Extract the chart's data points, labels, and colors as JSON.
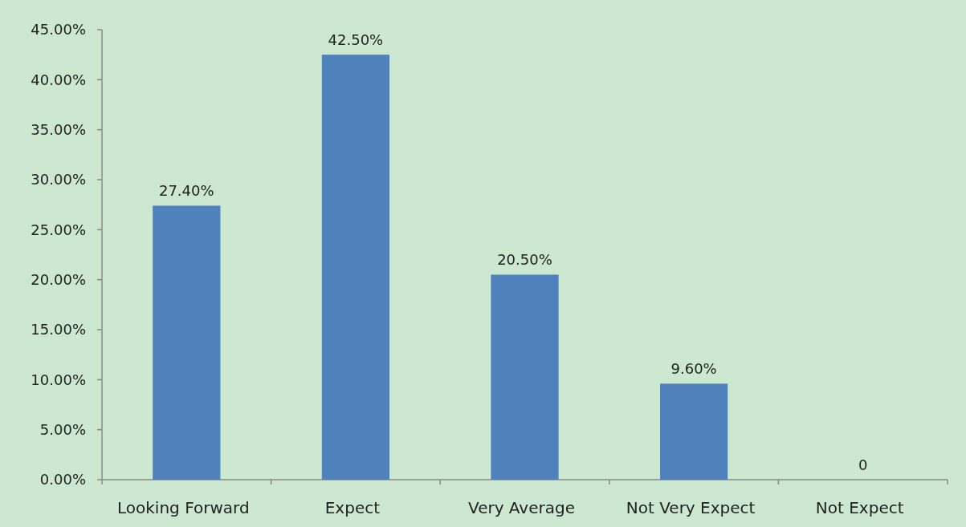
{
  "chart_data": {
    "type": "bar",
    "categories": [
      "Looking Forward",
      "Expect",
      "Very Average",
      "Not Very Expect",
      "Not Expect"
    ],
    "values": [
      27.4,
      42.5,
      20.5,
      9.6,
      0
    ],
    "value_labels": [
      "27.40%",
      "42.50%",
      "20.50%",
      "9.60%",
      "0"
    ],
    "color": "#4f81bd",
    "ylim": [
      0,
      45
    ],
    "yticks": [
      {
        "value": 0,
        "label": "0.00%"
      },
      {
        "value": 5,
        "label": "5.00%"
      },
      {
        "value": 10,
        "label": "10.00%"
      },
      {
        "value": 15,
        "label": "15.00%"
      },
      {
        "value": 20,
        "label": "20.00%"
      },
      {
        "value": 25,
        "label": "25.00%"
      },
      {
        "value": 30,
        "label": "30.00%"
      },
      {
        "value": 35,
        "label": "35.00%"
      },
      {
        "value": 40,
        "label": "40.00%"
      },
      {
        "value": 45,
        "label": "45.00%"
      }
    ],
    "grid": false
  }
}
